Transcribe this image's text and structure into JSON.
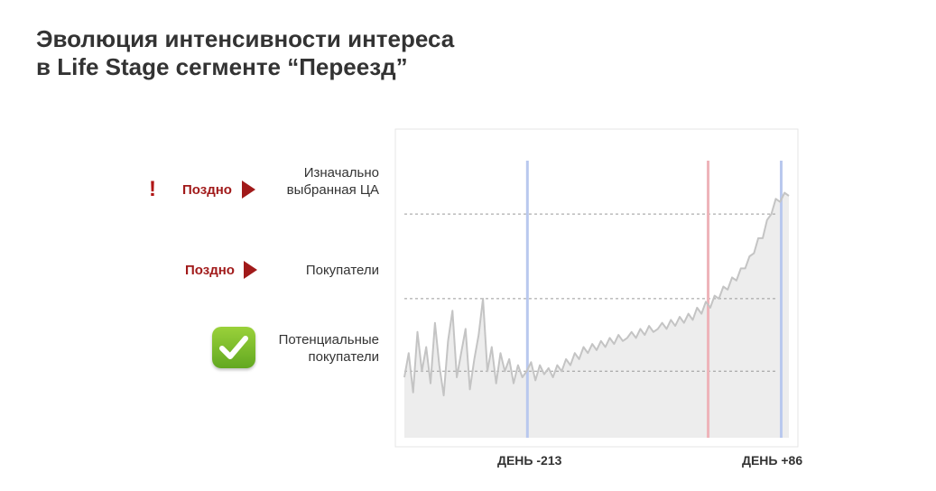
{
  "title": {
    "line1": "Эволюция интенсивности интереса",
    "line2": "в Life Stage сегменте “Переезд”"
  },
  "rows": [
    {
      "label_line1": "Изначально",
      "label_line2": "выбранная ЦА",
      "status": "Поздно",
      "warning": "!"
    },
    {
      "label_line1": "Покупатели",
      "label_line2": "",
      "status": "Поздно",
      "warning": ""
    },
    {
      "label_line1": "Потенциальные",
      "label_line2": "покупатели",
      "status": "",
      "warning": ""
    }
  ],
  "icons": {
    "late_arrow": "arrow-right-icon",
    "warning": "exclamation-icon",
    "ok": "checkmark-icon"
  },
  "colors": {
    "late": "#a11a1a",
    "ok": "#7cbd2c",
    "line": "#c4c4c4",
    "area": "#ededed",
    "blue_marker": "#b9c8ee",
    "red_marker": "#eeb3b9"
  },
  "chart_data": {
    "type": "area",
    "title": "",
    "xlabel": "",
    "ylabel": "",
    "x_tick_labels": [
      "ДЕНЬ -213",
      "ДЕНЬ +86"
    ],
    "threshold_levels": [
      "Потенциальные покупатели",
      "Покупатели",
      "Изначально выбранная ЦА"
    ],
    "threshold_values": [
      0.22,
      0.46,
      0.74
    ],
    "markers": [
      {
        "x": 0.32,
        "color": "blue"
      },
      {
        "x": 0.79,
        "color": "red"
      },
      {
        "x": 0.98,
        "color": "blue"
      }
    ],
    "series": [
      {
        "values": [
          0.2,
          0.28,
          0.15,
          0.35,
          0.22,
          0.3,
          0.18,
          0.38,
          0.24,
          0.14,
          0.32,
          0.42,
          0.2,
          0.28,
          0.36,
          0.16,
          0.26,
          0.34,
          0.46,
          0.22,
          0.3,
          0.18,
          0.28,
          0.22,
          0.26,
          0.18,
          0.24,
          0.2,
          0.22,
          0.25,
          0.19,
          0.24,
          0.21,
          0.23,
          0.2,
          0.24,
          0.22,
          0.26,
          0.24,
          0.28,
          0.26,
          0.3,
          0.28,
          0.31,
          0.29,
          0.32,
          0.3,
          0.33,
          0.31,
          0.34,
          0.32,
          0.33,
          0.35,
          0.33,
          0.36,
          0.34,
          0.37,
          0.35,
          0.36,
          0.38,
          0.36,
          0.39,
          0.37,
          0.4,
          0.38,
          0.41,
          0.39,
          0.43,
          0.41,
          0.45,
          0.43,
          0.47,
          0.46,
          0.5,
          0.49,
          0.53,
          0.52,
          0.56,
          0.56,
          0.6,
          0.61,
          0.66,
          0.66,
          0.72,
          0.74,
          0.79,
          0.78,
          0.81,
          0.8
        ]
      }
    ]
  }
}
